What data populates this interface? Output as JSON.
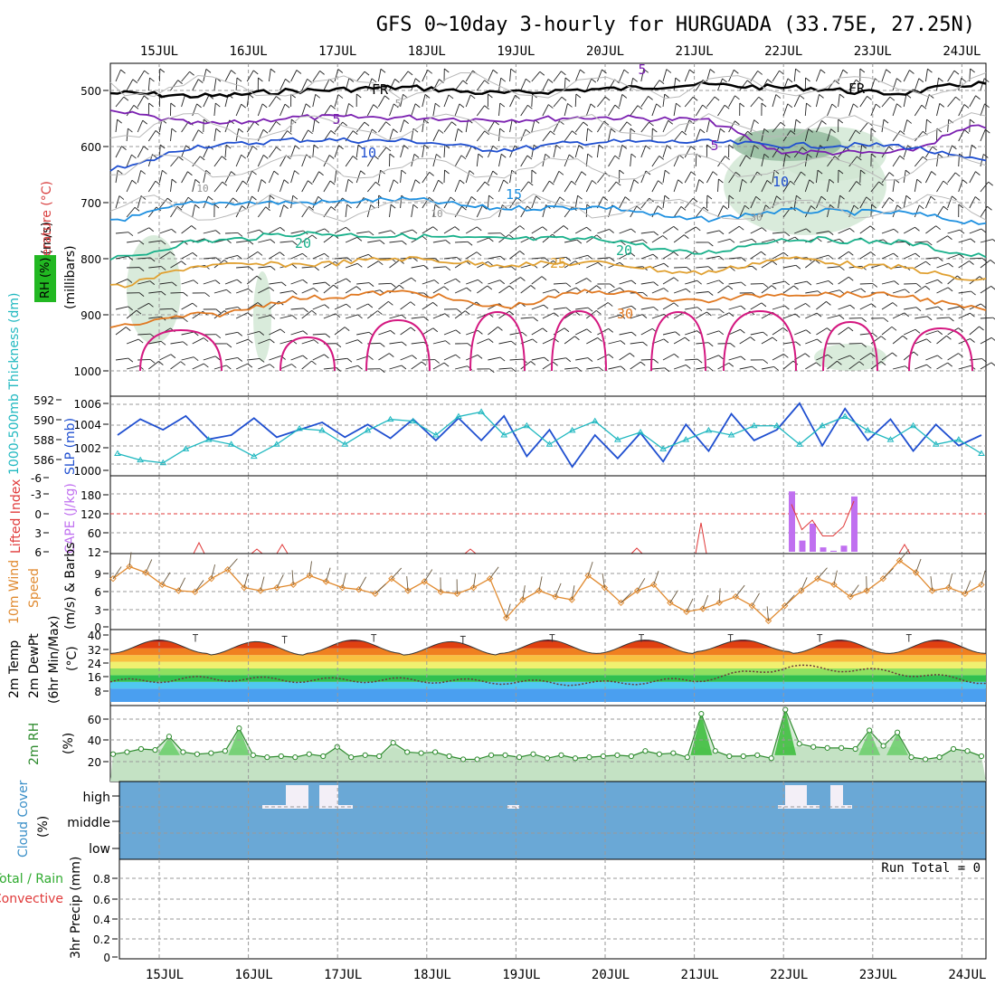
{
  "title": "GFS 0~10day 3-hourly for HURGUADA (33.75E, 27.25N)",
  "dates": [
    "15JUL",
    "16JUL",
    "17JUL",
    "18JUL",
    "19JUL",
    "20JUL",
    "21JUL",
    "22JUL",
    "23JUL",
    "24JUL"
  ],
  "colors": {
    "frame": "#000000",
    "grid": "#9a9a9a",
    "fr": "#000000",
    "rh_shade": "#cfe6d2",
    "slp": "#1f4fd0",
    "thick": "#20b8c0",
    "cape": "#c070f0",
    "li": "#e03a3a",
    "wind": "#e08a30",
    "barb": "#6b5a40",
    "rh": "#2e8b2e",
    "cloud": "#6aa8d6"
  },
  "upper_air": {
    "ylabel_wind": "Wind (m/s)",
    "ylabel_temp": "Temperature (°C)",
    "ylabel_rh": "RH (%)",
    "ylabel_units": "(millibars)",
    "y_ticks": [
      "500",
      "600",
      "700",
      "800",
      "900",
      "1000"
    ],
    "contour_labels": [
      "FR",
      "FR",
      "5",
      "5",
      "5",
      "10",
      "10",
      "15",
      "20",
      "20",
      "25",
      "30",
      "10",
      "10",
      "30",
      "5"
    ],
    "chart_data": {
      "type": "line",
      "y_axis": "pressure (mb)",
      "ylim": [
        440,
        1000
      ],
      "series": [
        {
          "name": "FR",
          "values": [
            505,
            510,
            500,
            495,
            505,
            498,
            490,
            495,
            505,
            488
          ]
        },
        {
          "name": "5",
          "values": [
            540,
            560,
            548,
            548,
            552,
            548,
            552,
            610,
            612,
            565
          ]
        },
        {
          "name": "10",
          "values": [
            640,
            598,
            588,
            590,
            605,
            592,
            592,
            598,
            598,
            625
          ]
        },
        {
          "name": "15",
          "values": [
            730,
            700,
            700,
            695,
            710,
            708,
            730,
            715,
            718,
            735
          ]
        },
        {
          "name": "20",
          "values": [
            800,
            768,
            755,
            760,
            765,
            765,
            790,
            765,
            770,
            795
          ]
        },
        {
          "name": "25",
          "values": [
            850,
            812,
            810,
            800,
            810,
            808,
            825,
            800,
            815,
            840
          ]
        },
        {
          "name": "30",
          "values": [
            920,
            900,
            870,
            860,
            885,
            858,
            875,
            862,
            865,
            890
          ]
        }
      ]
    }
  },
  "slp_thickness": {
    "ylabel_thick": "1000-500mb Thickness (dm)",
    "ylabel_slp": "SLP (mb)",
    "left_ticks": [
      "592",
      "590",
      "588",
      "586"
    ],
    "right_ticks": [
      "1006",
      "1004",
      "1002",
      "1000"
    ],
    "chart_data": {
      "type": "line",
      "x": [
        "14JUL21",
        "15JUL00",
        "15JUL06",
        "15JUL12",
        "15JUL18",
        "16JUL00",
        "16JUL06",
        "16JUL12",
        "16JUL18",
        "17JUL00",
        "17JUL06",
        "17JUL12",
        "17JUL18",
        "18JUL00",
        "18JUL06",
        "18JUL12",
        "18JUL18",
        "19JUL00",
        "19JUL06",
        "19JUL12",
        "19JUL18",
        "20JUL00",
        "20JUL06",
        "20JUL12",
        "20JUL18",
        "21JUL00",
        "21JUL06",
        "21JUL12",
        "21JUL18",
        "22JUL00",
        "22JUL06",
        "22JUL12",
        "22JUL18",
        "23JUL00",
        "23JUL06",
        "23JUL12",
        "23JUL18",
        "24JUL00",
        "24JUL06"
      ],
      "series": [
        {
          "name": "SLP",
          "unit": "mb",
          "values": [
            1003.0,
            1004.5,
            1003.5,
            1004.8,
            1002.6,
            1003.0,
            1004.6,
            1002.8,
            1003.5,
            1004.2,
            1002.8,
            1004.0,
            1002.7,
            1004.5,
            1002.5,
            1004.6,
            1002.5,
            1004.8,
            1001.0,
            1003.5,
            1000.0,
            1003.0,
            1000.8,
            1003.2,
            1000.5,
            1004.0,
            1001.5,
            1005.0,
            1002.5,
            1003.5,
            1006.0,
            1002.0,
            1005.5,
            1002.5,
            1004.5,
            1001.5,
            1004.0,
            1002.0,
            1003.0
          ]
        },
        {
          "name": "Thickness",
          "unit": "dm",
          "values": [
            586.5,
            585.8,
            585.5,
            587.0,
            588.0,
            587.5,
            586.2,
            587.5,
            589.2,
            589.0,
            587.5,
            589.0,
            590.2,
            590.0,
            588.5,
            590.5,
            591.0,
            588.5,
            589.5,
            587.5,
            589.0,
            590.0,
            588.0,
            588.8,
            587.0,
            588.0,
            589.0,
            588.5,
            589.5,
            589.5,
            587.5,
            589.5,
            590.5,
            589.0,
            588.0,
            589.5,
            587.5,
            588.0,
            586.5
          ]
        }
      ]
    }
  },
  "cape_li": {
    "ylabel_li": "Lifted Index",
    "ylabel_cape": "CAPE (J/kg)",
    "li_ticks": [
      "-6",
      "-3",
      "0",
      "3",
      "6"
    ],
    "cape_ticks": [
      "180",
      "120",
      "60",
      "12"
    ],
    "chart_data": {
      "type": "bar",
      "x": [
        "22JUL03",
        "22JUL06",
        "22JUL09",
        "22JUL12",
        "22JUL15",
        "22JUL18",
        "22JUL21"
      ],
      "values": [
        190,
        45,
        95,
        25,
        15,
        30,
        175
      ],
      "li_values": [
        -1.5,
        2.5,
        1.0,
        3.5,
        3.5,
        2.0,
        -2.0
      ]
    }
  },
  "wind10m": {
    "ylabel_1": "10m Wind",
    "ylabel_2": "Speed",
    "ylabel_3": "(m/s) & Barbs",
    "ticks": [
      "9",
      "6",
      "3",
      "0"
    ],
    "chart_data": {
      "type": "line",
      "ylim": [
        0,
        12
      ],
      "values": [
        8,
        10,
        9,
        7,
        6,
        5.8,
        8,
        9.5,
        6.5,
        6,
        6.5,
        7,
        8.5,
        7.5,
        6.5,
        6.2,
        5.5,
        8,
        6,
        7.5,
        5.8,
        5.5,
        6.5,
        8,
        1.5,
        4.5,
        6,
        5,
        4.5,
        8.5,
        6.5,
        4,
        6,
        7,
        4,
        2.5,
        3,
        4,
        5,
        3.5,
        1,
        3.5,
        6,
        8,
        7,
        5,
        6,
        8,
        11,
        9,
        6,
        6.5,
        5.5,
        7
      ]
    }
  },
  "temp2m": {
    "ylabel_1": "2m Temp",
    "ylabel_2": "2m DewPt",
    "ylabel_3": "(6hr Min/Max)",
    "ylabel_units": "(°C)",
    "ticks": [
      "40",
      "32",
      "24",
      "16",
      "8"
    ],
    "chart_data": {
      "type": "area",
      "ylim": [
        0,
        40
      ],
      "temp_max": [
        37,
        36,
        37,
        36,
        37,
        37,
        37,
        37,
        37,
        38
      ],
      "temp_min": [
        29,
        28,
        29,
        28,
        29,
        29,
        30,
        29,
        29,
        29
      ],
      "dewpoint": [
        12,
        14,
        13,
        13,
        12,
        11,
        13,
        21,
        18,
        12
      ]
    }
  },
  "rh2m": {
    "ylabel_1": "2m RH",
    "ylabel_units": "(%)",
    "ticks": [
      "60",
      "40",
      "20"
    ],
    "chart_data": {
      "type": "area",
      "ylim": [
        0,
        70
      ],
      "values": [
        23,
        25,
        28,
        27,
        40,
        25,
        23,
        24,
        26,
        48,
        22,
        20,
        21,
        20,
        23,
        21,
        30,
        20,
        22,
        21,
        34,
        25,
        24,
        25,
        21,
        18,
        18,
        22,
        22,
        20,
        23,
        19,
        22,
        19,
        20,
        21,
        22,
        21,
        26,
        23,
        24,
        20,
        62,
        26,
        21,
        21,
        22,
        19,
        66,
        33,
        30,
        29,
        29,
        28,
        46,
        31,
        44,
        20,
        18,
        20,
        28,
        26,
        21
      ]
    }
  },
  "cloud": {
    "ylabel_1": "Cloud Cover",
    "ylabel_units": "(%)",
    "levels": [
      "high",
      "middle",
      "low"
    ]
  },
  "precip": {
    "ylabel_1": "Total / Rain",
    "ylabel_2": "Convective",
    "ylabel_3": "3hr Precip (mm)",
    "ticks": [
      "0.8",
      "0.6",
      "0.4",
      "0.2",
      "0"
    ],
    "run_total": "Run Total = 0"
  }
}
